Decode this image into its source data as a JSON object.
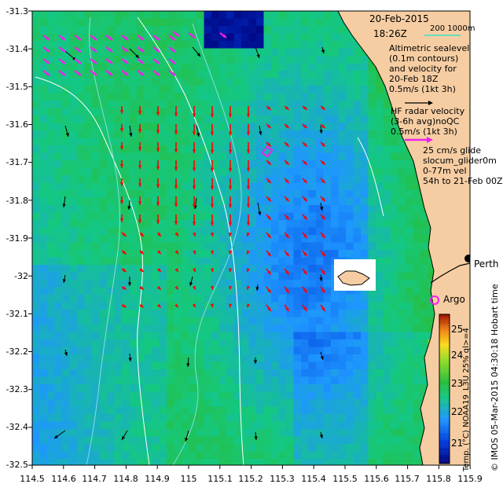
{
  "header": {
    "date": "20-Feb-2015",
    "time": "18:26Z",
    "scale_label": "200   1000m"
  },
  "legend": {
    "altimetry": [
      "Altimetric sealevel",
      "(0.1m contours)",
      "and velocity for",
      "20-Feb 18Z",
      "0.5m/s (1kt 3h)"
    ],
    "hf_radar": [
      "HF radar velocity",
      "(3-6h avg)noQC",
      "0.5m/s (1kt 3h)"
    ],
    "glider": [
      "25 cm/s glide",
      "slocum_glider0m",
      "0-77m vel",
      "54h to 21-Feb 00Z"
    ]
  },
  "places": {
    "perth": "Perth",
    "argo": "Argo"
  },
  "axes": {
    "y_ticks": [
      "-31.3",
      "-31.4",
      "-31.5",
      "-31.6",
      "-31.7",
      "-31.8",
      "-31.9",
      "-32",
      "-32.1",
      "-32.2",
      "-32.3",
      "-32.4",
      "-32.5"
    ],
    "x_ticks": [
      "114.5",
      "114.6",
      "114.7",
      "114.8",
      "114.9",
      "115",
      "115.1",
      "115.2",
      "115.3",
      "115.4",
      "115.5",
      "115.6",
      "115.7",
      "115.8",
      "115.9"
    ],
    "lon_range": [
      114.5,
      115.9
    ],
    "lat_range": [
      -32.5,
      -31.3
    ]
  },
  "colorbar": {
    "ticks": [
      "25",
      "24",
      "23",
      "22",
      "21"
    ],
    "label": "Temp. (°C) NOAA19_L3U 25% ql>=4",
    "vmin": 20.5,
    "vmax": 25.5
  },
  "credit": {
    "text": "© IMOS 05-Mar-2015 04:30:18 Hobart time"
  },
  "colors": {
    "sst_cool": "#33aaff",
    "sst_mid": "#22bb44",
    "sst_warm": "#ee8822",
    "land": "#f6cda2",
    "hf_radar_arrows": "#ff0000",
    "altimetry_arrows": "#000000",
    "glider_arrows": "#ee22ee",
    "contours": "#ffffff",
    "isobaths": "#88dddd"
  }
}
